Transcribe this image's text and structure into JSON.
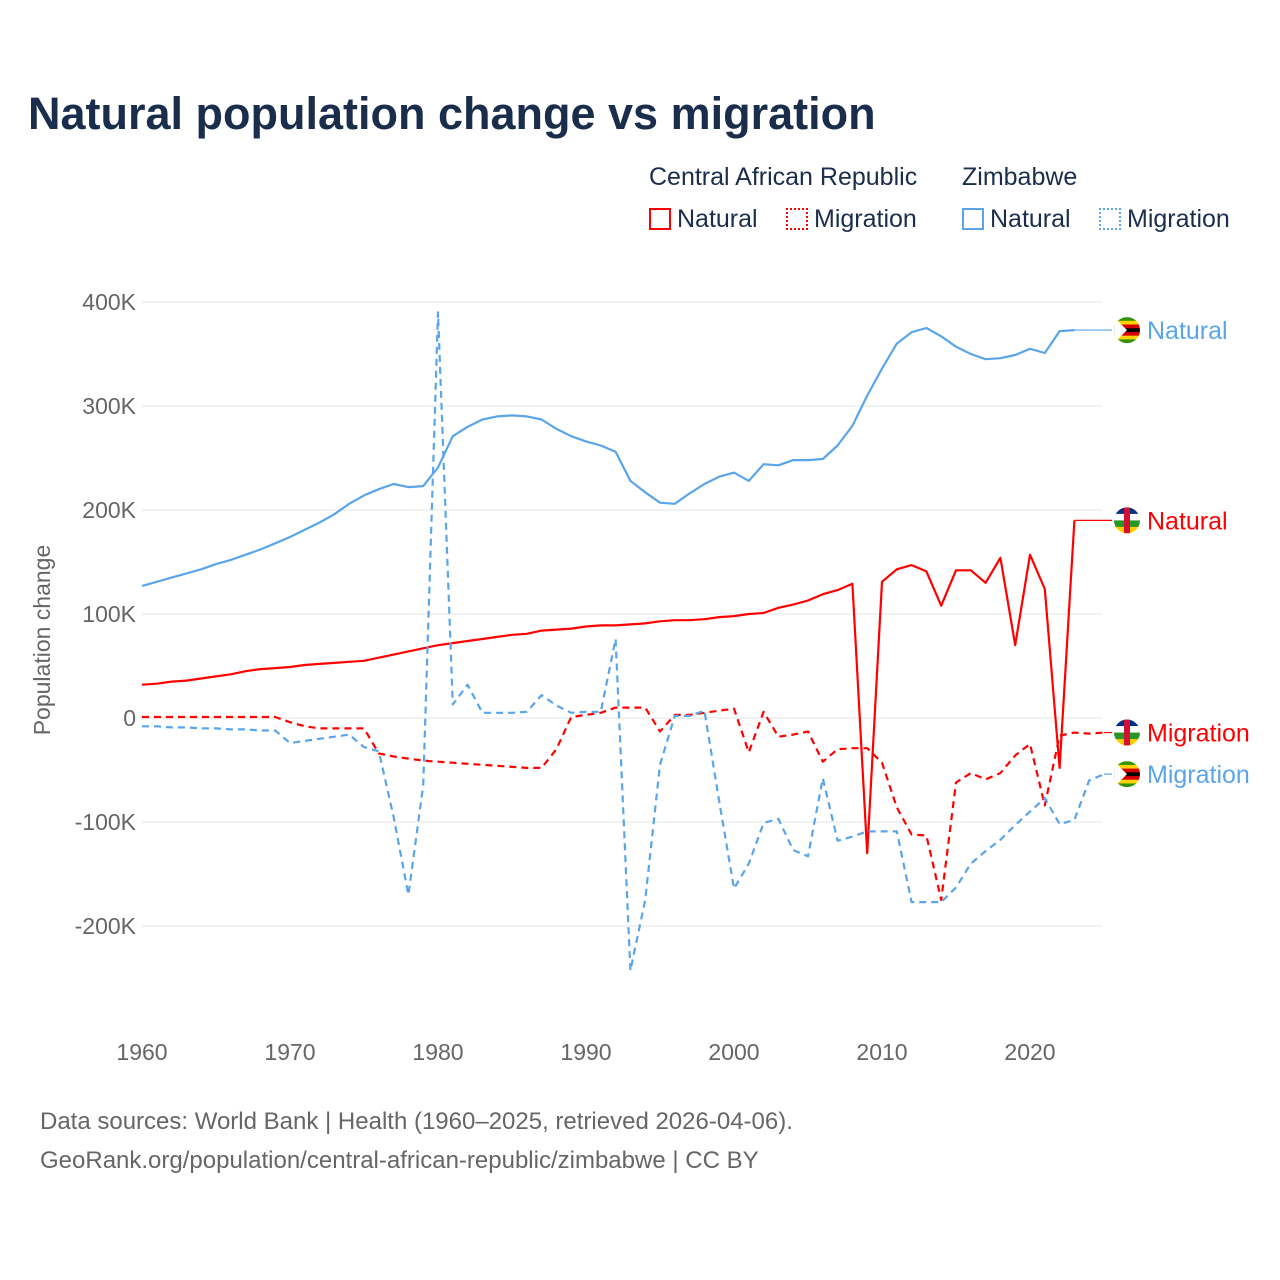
{
  "title": "Natural population change vs migration",
  "legend": {
    "groups": [
      {
        "name": "Central African Republic",
        "color": "#ff0000",
        "items": [
          "Natural",
          "Migration"
        ]
      },
      {
        "name": "Zimbabwe",
        "color": "#5aa5ea",
        "items": [
          "Natural",
          "Migration"
        ]
      }
    ]
  },
  "sources": {
    "line1": "Data sources: World Bank | Health (1960–2025, retrieved 2026-04-06).",
    "line2": "GeoRank.org/population/central-african-republic/zimbabwe | CC BY"
  },
  "chart_data": {
    "type": "line",
    "ylabel": "Population change",
    "xlabel": "",
    "xlim": [
      1960,
      2025
    ],
    "ylim": [
      -280,
      420
    ],
    "y_unit": "thousands",
    "x_ticks": [
      "1960",
      "1970",
      "1980",
      "1990",
      "2000",
      "2010",
      "2020"
    ],
    "y_ticks": [
      {
        "v": 400,
        "label": "400K"
      },
      {
        "v": 300,
        "label": "300K"
      },
      {
        "v": 200,
        "label": "200K"
      },
      {
        "v": 100,
        "label": "100K"
      },
      {
        "v": 0,
        "label": "0"
      },
      {
        "v": -100,
        "label": "-100K"
      },
      {
        "v": -200,
        "label": "-200K"
      }
    ],
    "grid": true,
    "series": [
      {
        "name": "Natural",
        "country": "Zimbabwe",
        "color": "#5aa5ea",
        "dashed": false,
        "end_label": "Natural",
        "start": 1960,
        "label_value": 373,
        "values": [
          127,
          131,
          135,
          139,
          143,
          148,
          152,
          157,
          162,
          168,
          174,
          181,
          188,
          196,
          206,
          214,
          220,
          225,
          222,
          223,
          241,
          271,
          280,
          287,
          290,
          291,
          290,
          287,
          278,
          271,
          266,
          262,
          256,
          228,
          217,
          207,
          206,
          216,
          225,
          232,
          236,
          228,
          244,
          243,
          248,
          248,
          249,
          262,
          281,
          310,
          336,
          360,
          371,
          375,
          367,
          357,
          350,
          345,
          346,
          349,
          355,
          351,
          372,
          373
        ]
      },
      {
        "name": "Natural",
        "country": "Central African Republic",
        "color": "#ff0000",
        "dashed": false,
        "end_label": "Natural",
        "start": 1960,
        "label_value": 190,
        "values": [
          32,
          33,
          35,
          36,
          38,
          40,
          42,
          45,
          47,
          48,
          49,
          51,
          52,
          53,
          54,
          55,
          58,
          61,
          64,
          67,
          70,
          72,
          74,
          76,
          78,
          80,
          81,
          84,
          85,
          86,
          88,
          89,
          89,
          90,
          91,
          93,
          94,
          94,
          95,
          97,
          98,
          100,
          101,
          106,
          109,
          113,
          119,
          123,
          129,
          -130,
          131,
          143,
          147,
          141,
          108,
          142,
          142,
          130,
          154,
          70,
          157,
          124,
          -48,
          190
        ]
      },
      {
        "name": "Migration",
        "country": "Central African Republic",
        "color": "#ff0000",
        "dashed": true,
        "end_label": "Migration",
        "start": 1960,
        "label_value": -14,
        "values": [
          1,
          1,
          1,
          1,
          1,
          1,
          1,
          1,
          1,
          1,
          -4,
          -8,
          -10,
          -10,
          -10,
          -10,
          -34,
          -37,
          -39,
          -41,
          -42,
          -43,
          -44,
          -45,
          -46,
          -47,
          -48,
          -48,
          -30,
          1,
          3,
          5,
          10,
          10,
          10,
          -13,
          3,
          3,
          5,
          7,
          9,
          -33,
          6,
          -18,
          -16,
          -13,
          -42,
          -30,
          -29,
          -29,
          -43,
          -86,
          -112,
          -113,
          -175,
          -62,
          -53,
          -59,
          -53,
          -36,
          -25,
          -84,
          -17,
          -14,
          -15,
          -14
        ]
      },
      {
        "name": "Migration",
        "country": "Zimbabwe",
        "color": "#5aa5ea",
        "dashed": true,
        "end_label": "Migration",
        "start": 1960,
        "label_value": -54,
        "values": [
          -8,
          -8,
          -9,
          -9,
          -10,
          -10,
          -11,
          -11,
          -12,
          -12,
          -24,
          -22,
          -20,
          -18,
          -16,
          -28,
          -32,
          -95,
          -170,
          -65,
          390,
          13,
          32,
          5,
          5,
          5,
          6,
          22,
          12,
          5,
          6,
          6,
          76,
          -243,
          -175,
          -45,
          2,
          2,
          7,
          -80,
          -164,
          -140,
          -101,
          -97,
          -127,
          -133,
          -58,
          -118,
          -114,
          -109,
          -109,
          -109,
          -177,
          -177,
          -177,
          -163,
          -140,
          -128,
          -117,
          -103,
          -90,
          -77,
          -102,
          -98,
          -60,
          -54
        ]
      }
    ]
  }
}
